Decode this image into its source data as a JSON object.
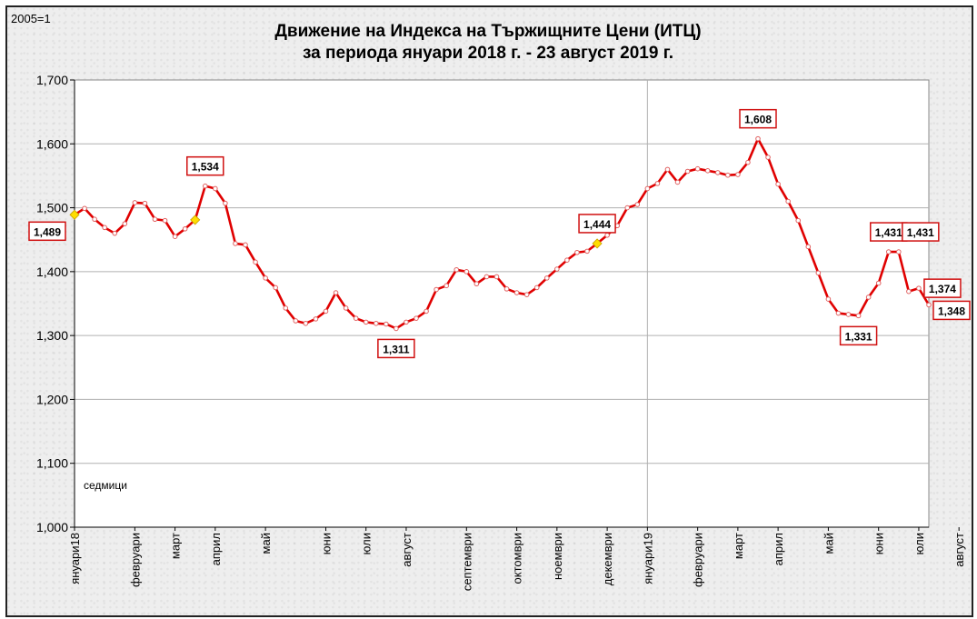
{
  "chart_data": {
    "type": "line",
    "base_label": "2005=1",
    "title_line1": "Движение на Индекса на Тържищните Цени (ИТЦ)",
    "title_line2": "за периода януари 2018 г. -  23 август 2019 г.",
    "unit_note": "седмици",
    "ylim": [
      1.0,
      1.7
    ],
    "y_ticks": [
      "1,000",
      "1,100",
      "1,200",
      "1,300",
      "1,400",
      "1,500",
      "1,600",
      "1,700"
    ],
    "grid": true,
    "x_labels": [
      {
        "label": "януари18",
        "week": 0
      },
      {
        "label": "февруари",
        "week": 6
      },
      {
        "label": "март",
        "week": 10
      },
      {
        "label": "април",
        "week": 14
      },
      {
        "label": "май",
        "week": 19
      },
      {
        "label": "юни",
        "week": 25
      },
      {
        "label": "юли",
        "week": 29
      },
      {
        "label": "август",
        "week": 33
      },
      {
        "label": "септември",
        "week": 39
      },
      {
        "label": "октомври",
        "week": 44
      },
      {
        "label": "ноември",
        "week": 48
      },
      {
        "label": "декември",
        "week": 53
      },
      {
        "label": "януари19",
        "week": 57
      },
      {
        "label": "февруари",
        "week": 62
      },
      {
        "label": "март",
        "week": 66
      },
      {
        "label": "април",
        "week": 70
      },
      {
        "label": "май",
        "week": 75
      },
      {
        "label": "юни",
        "week": 80
      },
      {
        "label": "юли",
        "week": 84
      },
      {
        "label": "август",
        "week": 88
      }
    ],
    "series": [
      {
        "color": "#e00000",
        "values": [
          1.489,
          1.499,
          1.482,
          1.469,
          1.46,
          1.475,
          1.508,
          1.507,
          1.482,
          1.48,
          1.455,
          1.467,
          1.481,
          1.534,
          1.53,
          1.507,
          1.444,
          1.442,
          1.415,
          1.39,
          1.375,
          1.343,
          1.323,
          1.319,
          1.326,
          1.338,
          1.367,
          1.343,
          1.327,
          1.321,
          1.319,
          1.318,
          1.311,
          1.321,
          1.327,
          1.338,
          1.372,
          1.378,
          1.403,
          1.4,
          1.381,
          1.392,
          1.392,
          1.373,
          1.367,
          1.364,
          1.375,
          1.39,
          1.404,
          1.418,
          1.43,
          1.432,
          1.444,
          1.457,
          1.472,
          1.5,
          1.505,
          1.53,
          1.538,
          1.56,
          1.54,
          1.557,
          1.561,
          1.558,
          1.555,
          1.551,
          1.552,
          1.571,
          1.608,
          1.579,
          1.537,
          1.51,
          1.48,
          1.439,
          1.398,
          1.357,
          1.335,
          1.333,
          1.331,
          1.36,
          1.382,
          1.431,
          1.431,
          1.369,
          1.374,
          1.348
        ]
      }
    ],
    "data_labels": [
      {
        "index": 0,
        "text": "1,489",
        "pos": "below"
      },
      {
        "index": 13,
        "text": "1,534",
        "pos": "above"
      },
      {
        "index": 32,
        "text": "1,311",
        "pos": "below"
      },
      {
        "index": 52,
        "text": "1,444",
        "pos": "above"
      },
      {
        "index": 68,
        "text": "1,608",
        "pos": "above"
      },
      {
        "index": 78,
        "text": "1,331",
        "pos": "below"
      },
      {
        "index": 81,
        "text": "1,431",
        "pos": "above"
      },
      {
        "index": 82,
        "text": "1,431",
        "pos": "above-right"
      },
      {
        "index": 84,
        "text": "1,374",
        "pos": "right"
      },
      {
        "index": 85,
        "text": "1,348",
        "pos": "below-right"
      }
    ],
    "highlight_indices": [
      0,
      12,
      52
    ]
  }
}
